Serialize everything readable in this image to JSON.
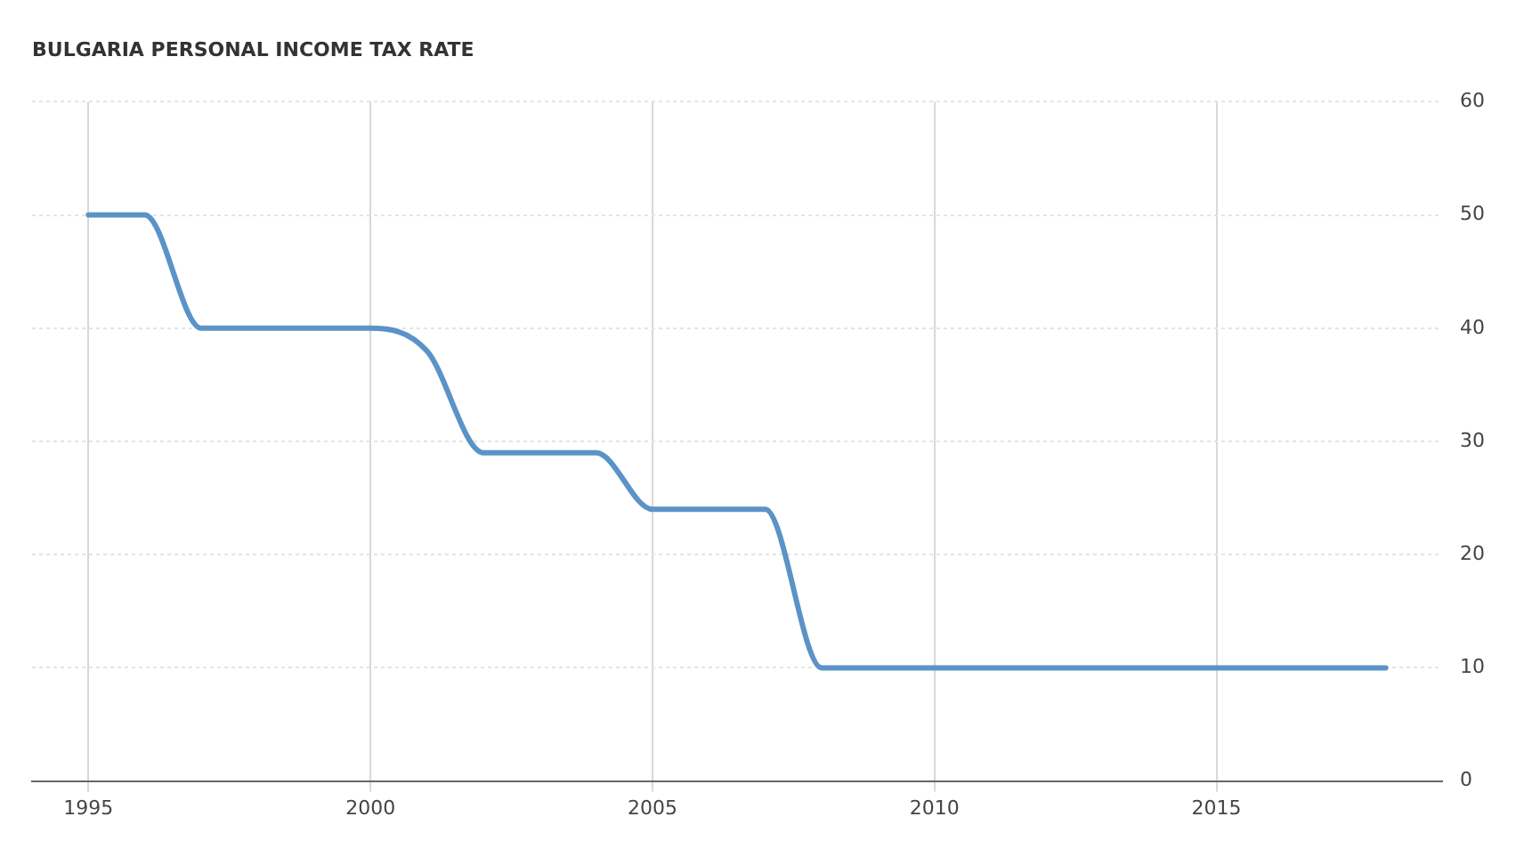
{
  "chart_data": {
    "type": "line",
    "title": "BULGARIA PERSONAL INCOME TAX RATE",
    "x": [
      1995,
      1996,
      1997,
      1998,
      1999,
      2000,
      2001,
      2002,
      2003,
      2004,
      2005,
      2006,
      2007,
      2008,
      2009,
      2010,
      2011,
      2012,
      2013,
      2014,
      2015,
      2016,
      2017,
      2018
    ],
    "series": [
      {
        "color": "#5b93c7",
        "values": [
          50,
          50,
          40,
          40,
          40,
          40,
          38,
          29,
          29,
          29,
          24,
          24,
          24,
          10,
          10,
          10,
          10,
          10,
          10,
          10,
          10,
          10,
          10,
          10
        ]
      }
    ],
    "xlim": [
      1994,
      2019
    ],
    "xticks": [
      1995,
      2000,
      2005,
      2010,
      2015
    ],
    "ylim": [
      0,
      60
    ],
    "yticks": [
      0,
      10,
      20,
      30,
      40,
      50,
      60
    ],
    "grid": true,
    "legend": false,
    "marker": "none",
    "line_style": "solid"
  }
}
